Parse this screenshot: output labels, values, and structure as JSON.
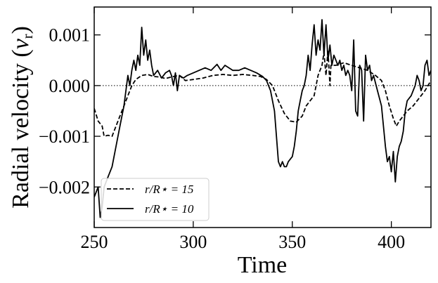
{
  "chart_data": {
    "type": "line",
    "title": "",
    "xlabel": "Time",
    "ylabel": "Radial velocity (v_r)",
    "ylabel_parts": {
      "main": "Radial velocity (",
      "var": "v",
      "sub": "r",
      "close": ")"
    },
    "xlim": [
      250,
      420
    ],
    "ylim": [
      -0.0028,
      0.00155
    ],
    "xticks": [
      250,
      300,
      350,
      400
    ],
    "xtick_labels": [
      "250",
      "300",
      "350",
      "400"
    ],
    "yticks": [
      -0.002,
      -0.001,
      0.0,
      0.001
    ],
    "ytick_labels": [
      "−0.002",
      "−0.001",
      "0.000",
      "0.001"
    ],
    "reference_line": {
      "y": 0.0,
      "style": "dotted"
    },
    "legend": {
      "placement": "lower-left",
      "entries": [
        "r/R⋆ = 15",
        "r/R⋆ = 10"
      ]
    },
    "series": [
      {
        "name": "r/R⋆ = 15",
        "style": "dashed",
        "color": "#000000",
        "points": [
          [
            250,
            -0.00045
          ],
          [
            252,
            -0.0007
          ],
          [
            254,
            -0.0008
          ],
          [
            255,
            -0.001
          ],
          [
            257,
            -0.00098
          ],
          [
            259,
            -0.001
          ],
          [
            261,
            -0.0008
          ],
          [
            263,
            -0.0006
          ],
          [
            265,
            -0.0004
          ],
          [
            267,
            -0.0002
          ],
          [
            269,
            0.0
          ],
          [
            271,
            0.00012
          ],
          [
            274,
            0.0002
          ],
          [
            277,
            0.00022
          ],
          [
            280,
            0.00018
          ],
          [
            283,
            0.00017
          ],
          [
            286,
            0.00014
          ],
          [
            290,
            0.00018
          ],
          [
            293,
            0.0002
          ],
          [
            296,
            0.0001
          ],
          [
            300,
            0.00012
          ],
          [
            305,
            0.00015
          ],
          [
            310,
            0.0002
          ],
          [
            315,
            0.00022
          ],
          [
            320,
            0.0002
          ],
          [
            325,
            0.00022
          ],
          [
            330,
            0.0002
          ],
          [
            334,
            0.00018
          ],
          [
            337,
            0.00012
          ],
          [
            340,
            0.0
          ],
          [
            343,
            -0.0003
          ],
          [
            346,
            -0.00055
          ],
          [
            349,
            -0.0007
          ],
          [
            352,
            -0.00072
          ],
          [
            355,
            -0.0006
          ],
          [
            357,
            -0.0004
          ],
          [
            359,
            -0.0003
          ],
          [
            361,
            -0.0002
          ],
          [
            363,
            0.0002
          ],
          [
            365,
            0.0004
          ],
          [
            366,
            0.00065
          ],
          [
            367,
            0.0002
          ],
          [
            368,
            0.0007
          ],
          [
            369,
            0.0
          ],
          [
            369.5,
            0.0004
          ],
          [
            372,
            0.0004
          ],
          [
            376,
            0.00045
          ],
          [
            380,
            0.0004
          ],
          [
            384,
            0.00035
          ],
          [
            388,
            0.0003
          ],
          [
            392,
            0.0002
          ],
          [
            395,
            0.0001
          ],
          [
            397,
            -0.0001
          ],
          [
            399,
            -0.0004
          ],
          [
            401,
            -0.00065
          ],
          [
            402.5,
            -0.0008
          ],
          [
            404,
            -0.0007
          ],
          [
            406,
            -0.0006
          ],
          [
            408,
            -0.0005
          ],
          [
            411,
            -0.0004
          ],
          [
            414,
            -0.00025
          ],
          [
            417,
            -0.0001
          ],
          [
            420,
            0.0001
          ]
        ]
      },
      {
        "name": "r/R⋆ = 10",
        "style": "solid",
        "color": "#000000",
        "points": [
          [
            250,
            -0.0022
          ],
          [
            251,
            -0.0021
          ],
          [
            252,
            -0.002
          ],
          [
            253,
            -0.0026
          ],
          [
            254,
            -0.0024
          ],
          [
            255,
            -0.002
          ],
          [
            257,
            -0.0018
          ],
          [
            259,
            -0.0016
          ],
          [
            261,
            -0.0012
          ],
          [
            263,
            -0.0008
          ],
          [
            265,
            -0.0004
          ],
          [
            267,
            0.0002
          ],
          [
            268,
            0.0
          ],
          [
            269,
            0.0003
          ],
          [
            270,
            0.0005
          ],
          [
            271,
            0.0003
          ],
          [
            272,
            0.0006
          ],
          [
            273,
            0.0004
          ],
          [
            274,
            0.00115
          ],
          [
            275,
            0.0006
          ],
          [
            276,
            0.0009
          ],
          [
            277,
            0.0005
          ],
          [
            278,
            0.0007
          ],
          [
            279,
            0.0004
          ],
          [
            280,
            0.0002
          ],
          [
            282,
            0.0003
          ],
          [
            284,
            0.00015
          ],
          [
            286,
            0.00025
          ],
          [
            288,
            0.0003
          ],
          [
            289,
            0.0002
          ],
          [
            290,
            0.0
          ],
          [
            291,
            0.00025
          ],
          [
            292,
            -0.0001
          ],
          [
            293,
            0.0002
          ],
          [
            295,
            0.00015
          ],
          [
            297,
            0.0002
          ],
          [
            300,
            0.00025
          ],
          [
            303,
            0.0003
          ],
          [
            306,
            0.00035
          ],
          [
            309,
            0.0003
          ],
          [
            312,
            0.00042
          ],
          [
            314,
            0.0003
          ],
          [
            316,
            0.0004
          ],
          [
            318,
            0.00035
          ],
          [
            320,
            0.0003
          ],
          [
            323,
            0.0003
          ],
          [
            326,
            0.00035
          ],
          [
            329,
            0.0003
          ],
          [
            332,
            0.00025
          ],
          [
            335,
            0.00018
          ],
          [
            337,
            0.0001
          ],
          [
            339,
            -0.0001
          ],
          [
            341,
            -0.0005
          ],
          [
            342,
            -0.001
          ],
          [
            343,
            -0.0015
          ],
          [
            344,
            -0.0016
          ],
          [
            345,
            -0.0015
          ],
          [
            346,
            -0.0016
          ],
          [
            347,
            -0.0016
          ],
          [
            348,
            -0.0015
          ],
          [
            350,
            -0.0014
          ],
          [
            351,
            -0.0012
          ],
          [
            352,
            -0.0009
          ],
          [
            353,
            -0.0005
          ],
          [
            354,
            -0.0003
          ],
          [
            355,
            -0.0001
          ],
          [
            356,
            0.0
          ],
          [
            357,
            0.0002
          ],
          [
            358,
            0.0006
          ],
          [
            359,
            0.0003
          ],
          [
            360,
            0.0008
          ],
          [
            361,
            0.0012
          ],
          [
            362,
            0.0006
          ],
          [
            363,
            0.0009
          ],
          [
            364,
            0.0007
          ],
          [
            365,
            0.0013
          ],
          [
            366,
            0.0006
          ],
          [
            367,
            0.0012
          ],
          [
            368,
            0.0005
          ],
          [
            369,
            0.0008
          ],
          [
            370,
            0.0004
          ],
          [
            371,
            0.0006
          ],
          [
            372,
            0.0005
          ],
          [
            373,
            0.0004
          ],
          [
            374,
            0.0005
          ],
          [
            375,
            0.0003
          ],
          [
            376,
            0.0004
          ],
          [
            377,
            0.0002
          ],
          [
            378,
            0.0003
          ],
          [
            379,
            0.0002
          ],
          [
            380,
            -0.0001
          ],
          [
            381,
            0.0009
          ],
          [
            382,
            -0.0005
          ],
          [
            383,
            -0.0006
          ],
          [
            384,
            0.0004
          ],
          [
            385,
            0.0003
          ],
          [
            386,
            -0.0007
          ],
          [
            387,
            0.0006
          ],
          [
            388,
            0.0003
          ],
          [
            389,
            0.0004
          ],
          [
            390,
            0.0001
          ],
          [
            391,
            0.0002
          ],
          [
            393,
            -0.0001
          ],
          [
            395,
            -0.0004
          ],
          [
            396,
            -0.0008
          ],
          [
            397,
            -0.0012
          ],
          [
            398,
            -0.0015
          ],
          [
            399,
            -0.0014
          ],
          [
            400,
            -0.0017
          ],
          [
            401,
            -0.0013
          ],
          [
            402,
            -0.0019
          ],
          [
            403,
            -0.0014
          ],
          [
            404,
            -0.0012
          ],
          [
            405,
            -0.0011
          ],
          [
            406,
            -0.0009
          ],
          [
            407,
            -0.0005
          ],
          [
            408,
            -0.0003
          ],
          [
            410,
            -0.0002
          ],
          [
            412,
            0.0
          ],
          [
            413,
            0.0002
          ],
          [
            414,
            0.0001
          ],
          [
            415,
            -0.0001
          ],
          [
            416,
            0.0
          ],
          [
            417,
            0.0004
          ],
          [
            418,
            0.0005
          ],
          [
            419,
            0.0002
          ],
          [
            420,
            0.0003
          ]
        ]
      }
    ]
  }
}
